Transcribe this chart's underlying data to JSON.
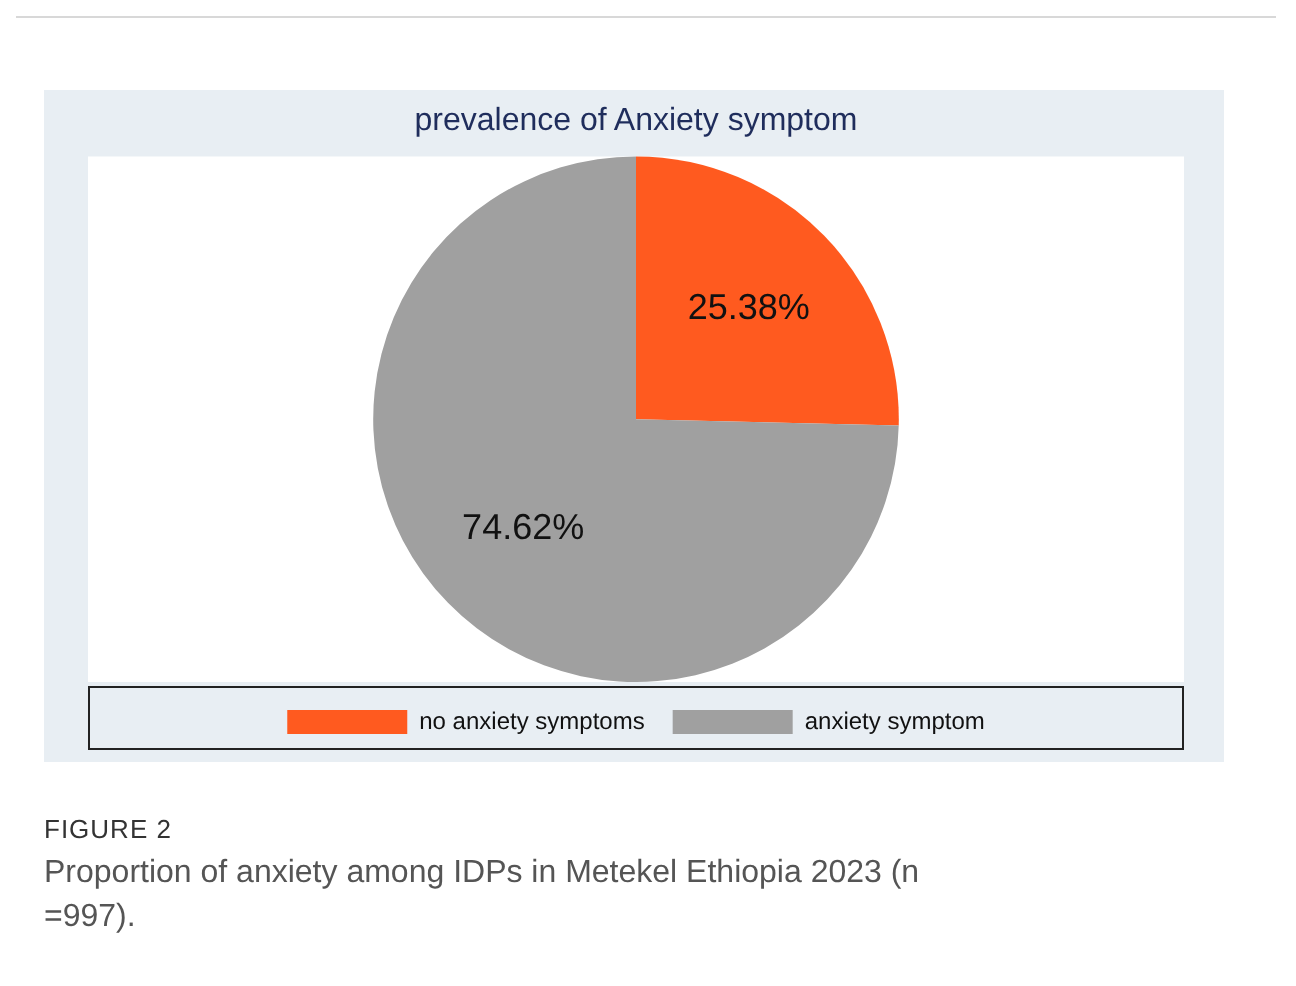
{
  "chart_data": {
    "type": "pie",
    "title": "prevalence of Anxiety symptom",
    "categories": [
      "no anxiety symptoms",
      "anxiety symptom"
    ],
    "values": [
      25.38,
      74.62
    ],
    "colors": [
      "#ff5a1f",
      "#a0a0a0"
    ],
    "value_labels": [
      "25.38%",
      "74.62%"
    ],
    "legend": "bottom",
    "annotations": [
      "FIGURE 2",
      "Proportion of anxiety among IDPs in Metekel Ethiopia 2023 (n =997)."
    ]
  }
}
